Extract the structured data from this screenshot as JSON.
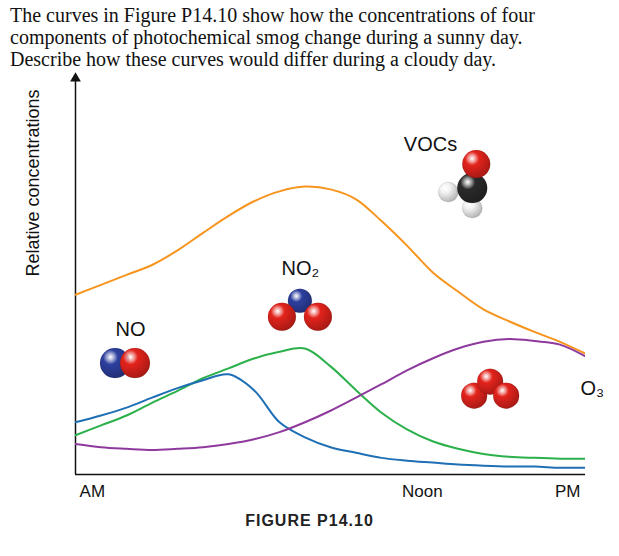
{
  "chart_data": {
    "type": "line",
    "title": "The curves in Figure P14.10 show how the concentrations of four components of photochemical smog change during a sunny day. Describe how these curves would differ during a cloudy day.",
    "caption": "FIGURE P14.10",
    "y_label": "Relative concentrations",
    "x": [
      0,
      5,
      10,
      15,
      20,
      25,
      30,
      35,
      40,
      45,
      50,
      55,
      60,
      65,
      70,
      75,
      80,
      85,
      90,
      95,
      100
    ],
    "xlim": [
      0,
      100
    ],
    "xticks": [
      {
        "value": 3.3,
        "label": "AM"
      },
      {
        "value": 68,
        "label": "Noon"
      },
      {
        "value": 96.5,
        "label": "PM"
      }
    ],
    "ylim": [
      0,
      100
    ],
    "yticks": [],
    "tick_labels": "x",
    "grid": false,
    "series": [
      {
        "name": "VOCs",
        "color": "#f7941d",
        "values": [
          45.4,
          47.9,
          50.4,
          52.9,
          56.6,
          61.0,
          65.3,
          69.0,
          71.5,
          72.7,
          72.0,
          69.5,
          64.0,
          57.8,
          51.1,
          46.2,
          41.7,
          38.7,
          36.0,
          33.5,
          30.5
        ]
      },
      {
        "name": "NO₂",
        "color": "#2bb04a",
        "values": [
          9.9,
          12.4,
          14.9,
          18.1,
          21.1,
          24.3,
          26.8,
          29.3,
          31.0,
          31.8,
          27.3,
          21.3,
          15.6,
          11.4,
          8.4,
          6.5,
          5.2,
          4.5,
          4.2,
          4.0,
          4.0
        ]
      },
      {
        "name": "NO",
        "color": "#1f6fb5",
        "values": [
          13.2,
          14.9,
          16.9,
          19.4,
          21.8,
          23.8,
          25.3,
          21.3,
          13.2,
          9.4,
          6.9,
          5.5,
          4.2,
          3.5,
          3.0,
          2.5,
          2.2,
          2.0,
          2.0,
          1.7,
          1.7
        ]
      },
      {
        "name": "O₃",
        "color": "#8e3a9d",
        "values": [
          7.7,
          6.9,
          6.5,
          6.2,
          6.5,
          6.9,
          7.7,
          8.9,
          10.7,
          13.2,
          16.1,
          19.4,
          22.8,
          26.3,
          29.3,
          31.8,
          33.5,
          34.2,
          33.7,
          32.8,
          29.8
        ]
      }
    ]
  }
}
